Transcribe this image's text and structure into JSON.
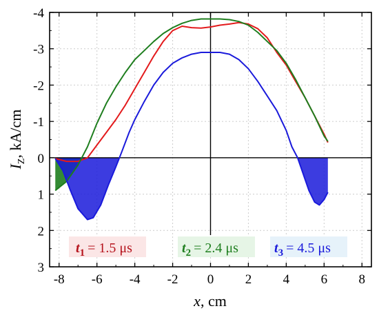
{
  "chart_data": {
    "type": "line",
    "xlabel": {
      "var": "x",
      "unit": ", cm"
    },
    "ylabel": {
      "var": "I",
      "sub": "Z",
      "unit": ", kA/cm"
    },
    "xlim": [
      -8.5,
      8.5
    ],
    "ylim": [
      -4,
      3
    ],
    "y_inverted": true,
    "grid": true,
    "x_ticks": [
      -8,
      -6,
      -4,
      -2,
      0,
      2,
      4,
      6,
      8
    ],
    "y_ticks": [
      -4,
      -3,
      -2,
      -1,
      0,
      1,
      2,
      3
    ],
    "x_tick_labels": [
      "-8",
      "-6",
      "-4",
      "-2",
      "0",
      "2",
      "4",
      "6",
      "8"
    ],
    "y_tick_labels": [
      "-4",
      "-3",
      "-2",
      "-1",
      "0",
      "1",
      "2",
      "3"
    ],
    "series": [
      {
        "t": "t",
        "sub": "1",
        "value": "= 1.5 μs",
        "color": "#e31a1c",
        "x": [
          -8.2,
          -7.6,
          -7.0,
          -6.5,
          -6.0,
          -5.5,
          -5.0,
          -4.5,
          -4.0,
          -3.5,
          -3.0,
          -2.5,
          -2.0,
          -1.5,
          -1.0,
          -0.5,
          0.0,
          0.5,
          1.0,
          1.5,
          2.0,
          2.5,
          3.0,
          3.5,
          4.0,
          4.5,
          5.0,
          5.5,
          6.0,
          6.2
        ],
        "y": [
          0.02,
          0.1,
          0.1,
          0.0,
          -0.35,
          -0.7,
          -1.05,
          -1.45,
          -1.9,
          -2.35,
          -2.8,
          -3.2,
          -3.5,
          -3.62,
          -3.58,
          -3.57,
          -3.6,
          -3.65,
          -3.68,
          -3.72,
          -3.68,
          -3.55,
          -3.3,
          -2.9,
          -2.55,
          -2.1,
          -1.65,
          -1.15,
          -0.65,
          -0.42
        ]
      },
      {
        "t": "t",
        "sub": "2",
        "value": "= 2.4 μs",
        "color": "#1e7e1e",
        "x": [
          -8.2,
          -7.6,
          -7.0,
          -6.5,
          -6.0,
          -5.5,
          -5.0,
          -4.5,
          -4.0,
          -3.5,
          -3.0,
          -2.5,
          -2.0,
          -1.5,
          -1.0,
          -0.5,
          0.0,
          0.5,
          1.0,
          1.5,
          2.0,
          2.5,
          3.0,
          3.5,
          4.0,
          4.5,
          5.0,
          5.5,
          6.0,
          6.2
        ],
        "y": [
          0.9,
          0.65,
          0.2,
          -0.3,
          -0.95,
          -1.5,
          -1.95,
          -2.35,
          -2.7,
          -2.95,
          -3.2,
          -3.42,
          -3.58,
          -3.7,
          -3.78,
          -3.82,
          -3.82,
          -3.82,
          -3.8,
          -3.75,
          -3.65,
          -3.45,
          -3.2,
          -2.95,
          -2.6,
          -2.15,
          -1.65,
          -1.15,
          -0.6,
          -0.45
        ]
      },
      {
        "t": "t",
        "sub": "3",
        "value": "= 4.5 μs",
        "color": "#1a1adb",
        "x": [
          -8.2,
          -7.8,
          -7.4,
          -7.0,
          -6.5,
          -6.2,
          -5.8,
          -5.4,
          -5.0,
          -4.7,
          -4.3,
          -4.0,
          -3.5,
          -3.0,
          -2.5,
          -2.0,
          -1.5,
          -1.0,
          -0.5,
          0.0,
          0.5,
          1.0,
          1.5,
          2.0,
          2.5,
          3.0,
          3.5,
          4.0,
          4.3,
          4.6,
          4.9,
          5.2,
          5.5,
          5.75,
          6.0,
          6.2
        ],
        "y": [
          0.02,
          0.35,
          0.9,
          1.4,
          1.7,
          1.65,
          1.3,
          0.75,
          0.25,
          -0.15,
          -0.7,
          -1.05,
          -1.55,
          -2.0,
          -2.35,
          -2.6,
          -2.75,
          -2.85,
          -2.9,
          -2.9,
          -2.9,
          -2.85,
          -2.7,
          -2.45,
          -2.1,
          -1.7,
          -1.3,
          -0.75,
          -0.3,
          0.0,
          0.45,
          0.9,
          1.22,
          1.3,
          1.15,
          0.95
        ]
      }
    ]
  }
}
